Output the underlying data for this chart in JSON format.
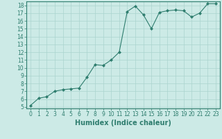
{
  "x": [
    0,
    1,
    2,
    3,
    4,
    5,
    6,
    7,
    8,
    9,
    10,
    11,
    12,
    13,
    14,
    15,
    16,
    17,
    18,
    19,
    20,
    21,
    22,
    23
  ],
  "y": [
    5.2,
    6.1,
    6.3,
    7.0,
    7.2,
    7.3,
    7.4,
    8.8,
    10.4,
    10.3,
    11.0,
    12.0,
    17.2,
    17.9,
    16.8,
    15.0,
    17.1,
    17.3,
    17.4,
    17.3,
    16.5,
    17.0,
    18.2,
    18.2
  ],
  "xlabel": "Humidex (Indice chaleur)",
  "xlim": [
    -0.5,
    23.5
  ],
  "ylim": [
    4.8,
    18.5
  ],
  "yticks": [
    5,
    6,
    7,
    8,
    9,
    10,
    11,
    12,
    13,
    14,
    15,
    16,
    17,
    18
  ],
  "xticks": [
    0,
    1,
    2,
    3,
    4,
    5,
    6,
    7,
    8,
    9,
    10,
    11,
    12,
    13,
    14,
    15,
    16,
    17,
    18,
    19,
    20,
    21,
    22,
    23
  ],
  "line_color": "#2e7d6e",
  "marker": "D",
  "marker_size": 2.0,
  "bg_color": "#cceae6",
  "grid_color": "#aad4cf",
  "tick_label_fontsize": 5.5,
  "xlabel_fontsize": 7.0,
  "linewidth": 0.8
}
